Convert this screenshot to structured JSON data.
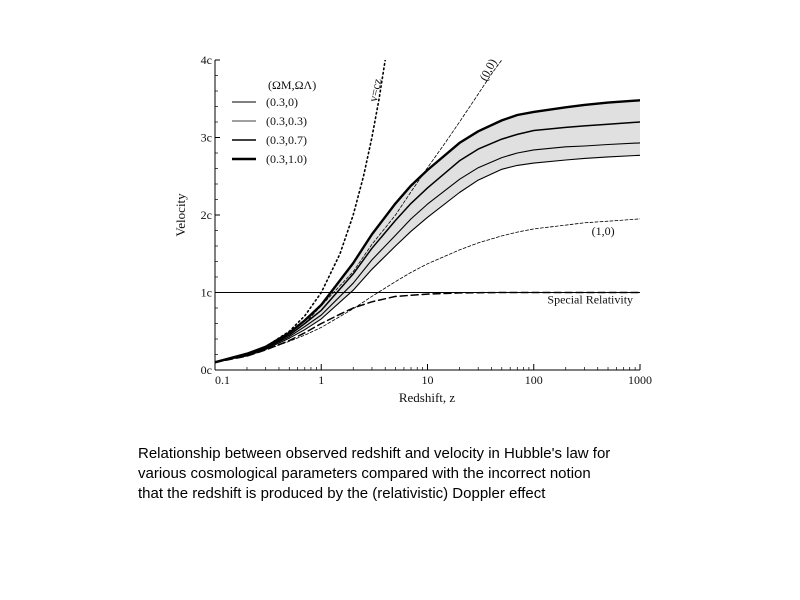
{
  "chart_data": {
    "type": "line",
    "xlabel": "Redshift, z",
    "ylabel": "Velocity",
    "xscale": "log",
    "xlim": [
      0.1,
      1000
    ],
    "ylim": [
      0,
      4
    ],
    "x_ticks": [
      0.1,
      1,
      10,
      100,
      1000
    ],
    "x_tick_labels": [
      "0.1",
      "1",
      "10",
      "100",
      "1000"
    ],
    "y_ticks": [
      0,
      1,
      2,
      3,
      4
    ],
    "y_tick_labels": [
      "0c",
      "1c",
      "2c",
      "3c",
      "4c"
    ],
    "legend": {
      "title": "(ΩM,ΩΛ)",
      "placement": "top-left",
      "entries": [
        "(0.3,0)",
        "(0.3,0.3)",
        "(0.3,0.7)",
        "(0.3,1.0)"
      ]
    },
    "series": [
      {
        "name": "(0.3,0)",
        "style": "solid-thin",
        "x": [
          0.1,
          0.2,
          0.3,
          0.5,
          0.7,
          1,
          2,
          3,
          5,
          7,
          10,
          20,
          30,
          50,
          70,
          100,
          200,
          300,
          500,
          1000
        ],
        "y": [
          0.1,
          0.19,
          0.27,
          0.41,
          0.52,
          0.66,
          1.03,
          1.3,
          1.6,
          1.79,
          1.97,
          2.29,
          2.45,
          2.59,
          2.64,
          2.67,
          2.71,
          2.73,
          2.75,
          2.77
        ]
      },
      {
        "name": "(0.3,0.3)",
        "style": "solid-thin",
        "x": [
          0.1,
          0.2,
          0.3,
          0.5,
          0.7,
          1,
          2,
          3,
          5,
          7,
          10,
          20,
          30,
          50,
          70,
          100,
          200,
          300,
          500,
          1000
        ],
        "y": [
          0.1,
          0.2,
          0.28,
          0.43,
          0.56,
          0.71,
          1.12,
          1.42,
          1.74,
          1.95,
          2.14,
          2.46,
          2.61,
          2.74,
          2.8,
          2.84,
          2.88,
          2.89,
          2.91,
          2.93
        ]
      },
      {
        "name": "(0.3,0.7)",
        "style": "solid-med",
        "x": [
          0.1,
          0.2,
          0.3,
          0.5,
          0.7,
          1,
          2,
          3,
          5,
          7,
          10,
          20,
          30,
          50,
          70,
          100,
          200,
          300,
          500,
          1000
        ],
        "y": [
          0.1,
          0.2,
          0.29,
          0.45,
          0.6,
          0.77,
          1.24,
          1.57,
          1.93,
          2.15,
          2.35,
          2.7,
          2.85,
          2.98,
          3.04,
          3.09,
          3.13,
          3.15,
          3.17,
          3.2
        ]
      },
      {
        "name": "(0.3,1.0)",
        "style": "solid-thick",
        "x": [
          0.1,
          0.2,
          0.3,
          0.5,
          0.7,
          1,
          2,
          3,
          5,
          7,
          10,
          20,
          30,
          50,
          70,
          100,
          200,
          300,
          500,
          1000
        ],
        "y": [
          0.1,
          0.21,
          0.3,
          0.48,
          0.64,
          0.84,
          1.38,
          1.75,
          2.15,
          2.38,
          2.58,
          2.93,
          3.08,
          3.22,
          3.29,
          3.33,
          3.39,
          3.42,
          3.45,
          3.48
        ]
      },
      {
        "name": "v=cz",
        "style": "dotted",
        "x": [
          0.1,
          0.2,
          0.3,
          0.5,
          0.7,
          1,
          1.5,
          2,
          2.5,
          3,
          3.5,
          4
        ],
        "y": [
          0.1,
          0.2,
          0.3,
          0.5,
          0.7,
          1,
          1.5,
          2,
          2.5,
          3,
          3.5,
          4
        ]
      },
      {
        "name": "(0,0)",
        "style": "dashed-thin",
        "x": [
          0.1,
          0.2,
          0.3,
          0.5,
          0.7,
          1,
          2,
          3,
          5,
          7,
          10,
          15,
          20,
          30,
          40,
          50
        ],
        "y": [
          0.1,
          0.19,
          0.28,
          0.45,
          0.6,
          0.83,
          1.27,
          1.62,
          2.0,
          2.3,
          2.61,
          2.95,
          3.2,
          3.56,
          3.82,
          4.0
        ]
      },
      {
        "name": "(1,0)",
        "style": "dashed-thin",
        "x": [
          0.1,
          0.2,
          0.3,
          0.5,
          0.7,
          1,
          2,
          3,
          5,
          7,
          10,
          20,
          30,
          50,
          70,
          100,
          200,
          300,
          500,
          1000
        ],
        "y": [
          0.1,
          0.18,
          0.26,
          0.37,
          0.45,
          0.55,
          0.79,
          0.95,
          1.14,
          1.26,
          1.37,
          1.55,
          1.64,
          1.73,
          1.78,
          1.82,
          1.87,
          1.9,
          1.92,
          1.95
        ]
      },
      {
        "name": "Special Relativity",
        "style": "dashed-thick",
        "x": [
          0.1,
          0.2,
          0.3,
          0.5,
          0.7,
          1,
          1.5,
          2,
          3,
          5,
          10,
          20,
          50,
          100,
          1000
        ],
        "y": [
          0.1,
          0.18,
          0.26,
          0.38,
          0.48,
          0.6,
          0.72,
          0.8,
          0.88,
          0.95,
          0.98,
          0.995,
          1.0,
          1.0,
          1.0
        ]
      }
    ],
    "reference_lines": [
      {
        "y": 1
      }
    ],
    "shaded_band": {
      "between": [
        "(0.3,0)",
        "(0.3,1.0)"
      ],
      "color": "#e0e0e0"
    },
    "annotations": [
      {
        "text": "v=cz",
        "x": 3.5,
        "y": 3.6
      },
      {
        "text": "(0,0)",
        "x": 40,
        "y": 3.85
      },
      {
        "text": "(1,0)",
        "x": 450,
        "y": 1.74
      },
      {
        "text": "Special Relativity",
        "x": 340,
        "y": 0.86
      }
    ]
  },
  "caption": [
    "Relationship between observed redshift and velocity in Hubble's law for",
    "various cosmological parameters compared with the incorrect notion",
    "that the redshift is produced by the (relativistic) Doppler effect"
  ]
}
